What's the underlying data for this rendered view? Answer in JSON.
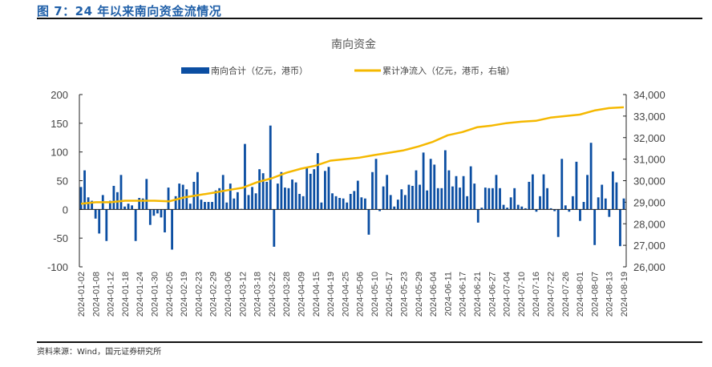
{
  "figure_title": "图 7：24 年以来南向资金流情况",
  "source": "资料来源：Wind，国元证券研究所",
  "chart_data": {
    "type": "bar+line",
    "title": "南向资金",
    "legend_position": "top-center",
    "grid": false,
    "colors": {
      "bars": "#0B4EA2",
      "line": "#F5B800"
    },
    "left_axis": {
      "ylim": [
        -100,
        200
      ],
      "ticks": [
        -100,
        -50,
        0,
        50,
        100,
        150,
        200
      ],
      "tick_labels": [
        "-100",
        "-50",
        "0",
        "50",
        "100",
        "150",
        "200"
      ]
    },
    "right_axis": {
      "ylim": [
        26000,
        34000
      ],
      "ticks": [
        26000,
        27000,
        28000,
        29000,
        30000,
        31000,
        32000,
        33000,
        34000
      ],
      "tick_labels": [
        "26,000",
        "27,000",
        "28,000",
        "29,000",
        "30,000",
        "31,000",
        "32,000",
        "33,000",
        "34,000"
      ]
    },
    "x_tick_labels": [
      "2024-01-02",
      "2024-01-08",
      "2024-01-12",
      "2024-01-18",
      "2024-01-24",
      "2024-01-30",
      "2024-02-05",
      "2024-02-19",
      "2024-02-23",
      "2024-02-29",
      "2024-03-06",
      "2024-03-12",
      "2024-03-18",
      "2024-03-22",
      "2024-03-28",
      "2024-04-09",
      "2024-04-15",
      "2024-04-19",
      "2024-04-25",
      "2024-05-06",
      "2024-05-10",
      "2024-05-17",
      "2024-05-23",
      "2024-05-29",
      "2024-06-04",
      "2024-06-11",
      "2024-06-17",
      "2024-06-21",
      "2024-06-27",
      "2024-07-04",
      "2024-07-10",
      "2024-07-16",
      "2024-07-22",
      "2024-07-26",
      "2024-08-01",
      "2024-08-07",
      "2024-08-13",
      "2024-08-19"
    ],
    "series": [
      {
        "name": "南向合计（亿元，港币）",
        "type": "bar",
        "axis": "left",
        "values": [
          39,
          68,
          21,
          15,
          -16,
          -42,
          25,
          -55,
          15,
          41,
          30,
          60,
          5,
          10,
          7,
          -55,
          20,
          19,
          53,
          -27,
          -11,
          -7,
          -14,
          -40,
          38,
          -70,
          23,
          45,
          43,
          35,
          10,
          48,
          65,
          17,
          13,
          13,
          13,
          33,
          37,
          60,
          12,
          45,
          19,
          30,
          1,
          114,
          25,
          39,
          28,
          70,
          63,
          48,
          146,
          -65,
          45,
          65,
          38,
          37,
          52,
          47,
          27,
          23,
          72,
          62,
          70,
          98,
          12,
          67,
          74,
          28,
          23,
          20,
          19,
          12,
          27,
          32,
          50,
          21,
          19,
          -44,
          65,
          88,
          -3,
          40,
          60,
          25,
          5,
          17,
          35,
          25,
          43,
          41,
          68,
          43,
          99,
          33,
          88,
          78,
          37,
          37,
          103,
          68,
          40,
          58,
          38,
          58,
          23,
          75,
          45,
          -23,
          3,
          38,
          37,
          37,
          60,
          37,
          8,
          3,
          21,
          37,
          8,
          5,
          2,
          48,
          61,
          -4,
          23,
          61,
          37,
          2,
          -3,
          -48,
          88,
          7,
          -4,
          23,
          83,
          -20,
          13,
          60,
          116,
          -62,
          21,
          43,
          19,
          -13,
          66,
          47,
          -64,
          19
        ]
      },
      {
        "name": "累计净流入（亿元，港币，右轴）",
        "type": "line",
        "axis": "right",
        "x_labels_ref": "x_tick_labels",
        "values": [
          28930,
          29000,
          29000,
          29070,
          29070,
          29070,
          29040,
          29220,
          29330,
          29440,
          29560,
          29670,
          29930,
          30110,
          30370,
          30560,
          30700,
          30930,
          31000,
          31070,
          31190,
          31300,
          31410,
          31590,
          31810,
          32110,
          32260,
          32480,
          32560,
          32670,
          32740,
          32780,
          32930,
          33000,
          33070,
          33260,
          33370,
          33410
        ]
      }
    ]
  }
}
